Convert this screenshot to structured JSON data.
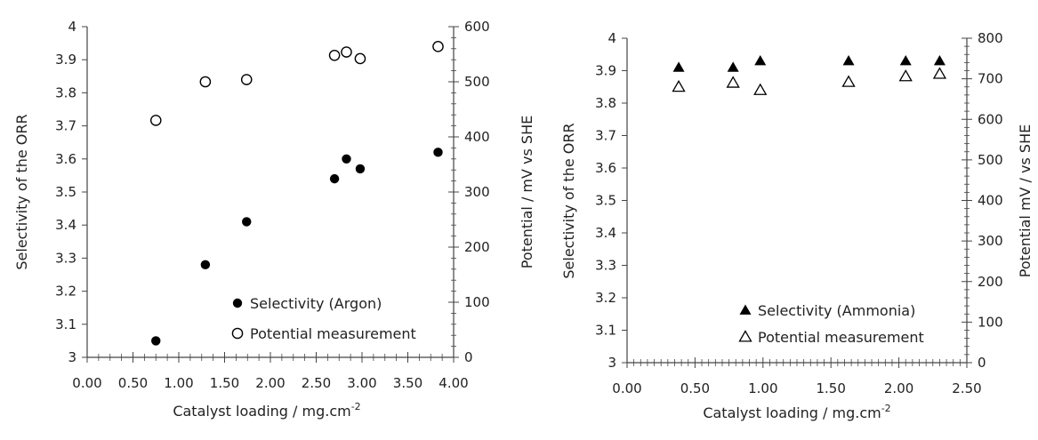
{
  "chart_data": [
    {
      "type": "scatter",
      "xlabel": "Catalyst loading  / mg.cm",
      "xlabel_sup": "-2",
      "ylabel_left": "Selectivity of the ORR",
      "ylabel_right": "Potential / mV vs SHE",
      "xlim": [
        0,
        4
      ],
      "ylim_left": [
        3,
        4
      ],
      "ylim_right": [
        0,
        600
      ],
      "x_ticks": [
        "0.00",
        "0.50",
        "1.00",
        "1.50",
        "2.00",
        "2.50",
        "3.00",
        "3.50",
        "4.00"
      ],
      "y_left_ticks": [
        "3",
        "3.1",
        "3.2",
        "3.3",
        "3.4",
        "3.5",
        "3.6",
        "3.7",
        "3.8",
        "3.9",
        "4"
      ],
      "y_right_ticks": [
        "0",
        "100",
        "200",
        "300",
        "400",
        "500",
        "600"
      ],
      "grid": false,
      "legend_position": "lower-right",
      "series": [
        {
          "name": "Selectivity (Argon)",
          "marker": "filled-circle",
          "axis": "left",
          "points": [
            [
              0.75,
              3.05
            ],
            [
              1.29,
              3.28
            ],
            [
              1.74,
              3.41
            ],
            [
              2.7,
              3.54
            ],
            [
              2.83,
              3.6
            ],
            [
              2.98,
              3.57
            ],
            [
              3.83,
              3.62
            ]
          ]
        },
        {
          "name": "Potential measurement",
          "marker": "open-circle",
          "axis": "right",
          "points": [
            [
              0.75,
              430
            ],
            [
              1.29,
              500
            ],
            [
              1.74,
              504
            ],
            [
              2.7,
              548
            ],
            [
              2.83,
              554
            ],
            [
              2.98,
              542
            ],
            [
              3.83,
              564
            ]
          ]
        }
      ]
    },
    {
      "type": "scatter",
      "xlabel": "Catalyst loading / mg.cm",
      "xlabel_sup": "-2",
      "ylabel_left": "Selectivity of the ORR",
      "ylabel_right": "Potential mV / vs SHE",
      "xlim": [
        0,
        2.5
      ],
      "ylim_left": [
        3,
        4
      ],
      "ylim_right": [
        0,
        800
      ],
      "x_ticks": [
        "0.00",
        "0.50",
        "1.00",
        "1.50",
        "2.00",
        "2.50"
      ],
      "y_left_ticks": [
        "3",
        "3.1",
        "3.2",
        "3.3",
        "3.4",
        "3.5",
        "3.6",
        "3.7",
        "3.8",
        "3.9",
        "4"
      ],
      "y_right_ticks": [
        "0",
        "100",
        "200",
        "300",
        "400",
        "500",
        "600",
        "700",
        "800"
      ],
      "grid": false,
      "legend_position": "lower-right",
      "series": [
        {
          "name": "Selectivity (Ammonia)",
          "marker": "filled-triangle",
          "axis": "left",
          "points": [
            [
              0.38,
              3.91
            ],
            [
              0.78,
              3.91
            ],
            [
              0.98,
              3.93
            ],
            [
              1.63,
              3.93
            ],
            [
              2.05,
              3.93
            ],
            [
              2.3,
              3.93
            ]
          ]
        },
        {
          "name": "Potential measurement",
          "marker": "open-triangle",
          "axis": "right",
          "points": [
            [
              0.38,
              680
            ],
            [
              0.78,
              690
            ],
            [
              0.98,
              672
            ],
            [
              1.63,
              692
            ],
            [
              2.05,
              706
            ],
            [
              2.3,
              712
            ]
          ]
        }
      ]
    }
  ]
}
